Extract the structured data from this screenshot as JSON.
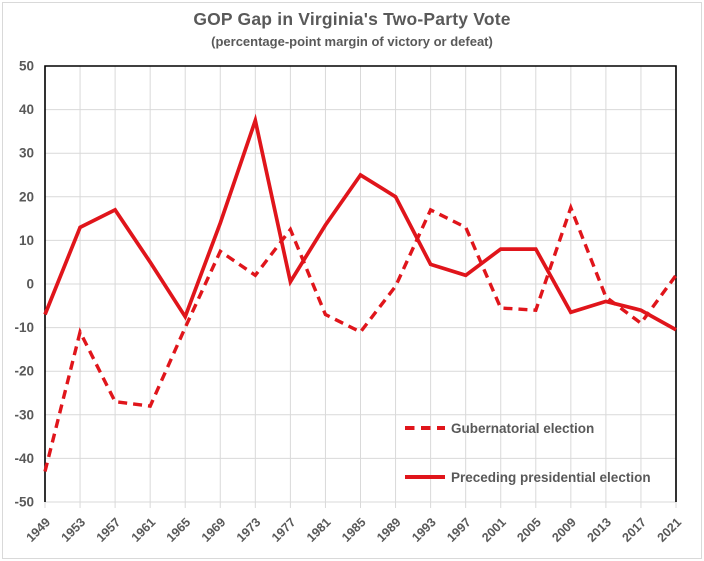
{
  "chart_data": {
    "type": "line",
    "title": "GOP Gap in Virginia's Two-Party Vote",
    "subtitle": "(percentage-point margin of victory or defeat)",
    "x_categories": [
      "1949",
      "1953",
      "1957",
      "1961",
      "1965",
      "1969",
      "1973",
      "1977",
      "1981",
      "1985",
      "1989",
      "1993",
      "1997",
      "2001",
      "2005",
      "2009",
      "2013",
      "2017",
      "2021"
    ],
    "series": [
      {
        "name": "Gubernatorial election",
        "line_style": "dashed",
        "values": [
          -43,
          -11,
          -27,
          -28,
          -10,
          7.5,
          2,
          12.5,
          -7,
          -11,
          -0.5,
          17,
          13,
          -5.5,
          -6,
          17.5,
          -3,
          -9,
          2
        ]
      },
      {
        "name": "Preceding presidential election",
        "line_style": "solid",
        "values": [
          -7,
          13,
          17,
          5,
          -7.5,
          14,
          37.5,
          0.5,
          13.5,
          25,
          20,
          4.5,
          2,
          8,
          8,
          -6.5,
          -4,
          -6,
          -10.5
        ]
      }
    ],
    "ylim": [
      -50,
      50
    ],
    "y_tick_step": 10,
    "grid": true,
    "legend_position": "inside-lower-right",
    "xlabel": "",
    "ylabel": ""
  },
  "colors": {
    "series_red": "#e0151b",
    "text_gray": "#595959",
    "gridline_gray": "#d9d9d9",
    "axis_black": "#000000",
    "frame_gray": "#d9d9d9",
    "background": "#ffffff"
  }
}
